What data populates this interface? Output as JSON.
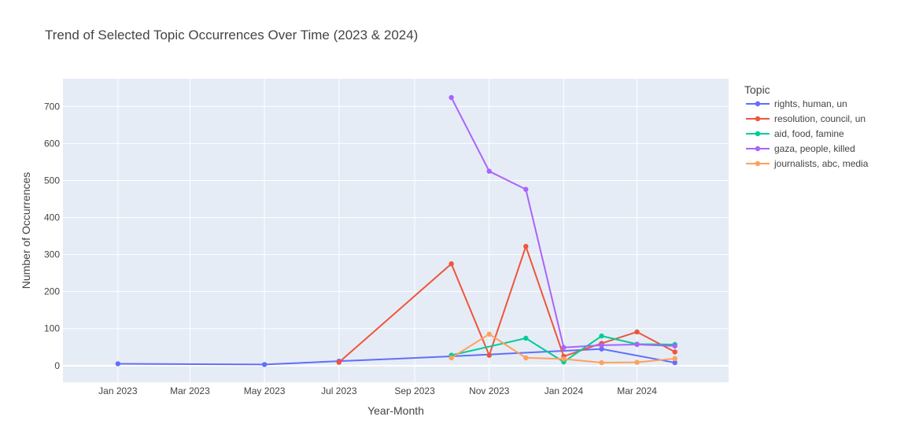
{
  "chart_data": {
    "type": "line",
    "title": "Trend of Selected Topic Occurrences Over Time (2023 & 2024)",
    "xlabel": "Year-Month",
    "ylabel": "Number of Occurrences",
    "xlim": [
      "2022-11-17",
      "2024-05-15"
    ],
    "ylim": [
      -45,
      775
    ],
    "x_ticks": [
      {
        "date": "2023-01-01",
        "label": "Jan 2023"
      },
      {
        "date": "2023-03-01",
        "label": "Mar 2023"
      },
      {
        "date": "2023-05-01",
        "label": "May 2023"
      },
      {
        "date": "2023-07-01",
        "label": "Jul 2023"
      },
      {
        "date": "2023-09-01",
        "label": "Sep 2023"
      },
      {
        "date": "2023-11-01",
        "label": "Nov 2023"
      },
      {
        "date": "2024-01-01",
        "label": "Jan 2024"
      },
      {
        "date": "2024-03-01",
        "label": "Mar 2024"
      }
    ],
    "y_ticks": [
      0,
      100,
      200,
      300,
      400,
      500,
      600,
      700
    ],
    "grid": true,
    "legend_title": "Topic",
    "legend_position": "right",
    "series": [
      {
        "name": "rights, human, un",
        "color": "#636efa",
        "x": [
          "2023-01-01",
          "2023-05-01",
          "2023-07-01",
          "2023-10-01",
          "2024-02-01",
          "2024-04-01"
        ],
        "y": [
          5,
          3,
          12,
          25,
          45,
          8
        ]
      },
      {
        "name": "resolution, council, un",
        "color": "#EF553B",
        "x": [
          "2023-07-01",
          "2023-10-01",
          "2023-11-01",
          "2023-12-01",
          "2024-01-01",
          "2024-02-01",
          "2024-03-01",
          "2024-04-01"
        ],
        "y": [
          9,
          275,
          28,
          322,
          25,
          60,
          91,
          37
        ]
      },
      {
        "name": "aid, food, famine",
        "color": "#00cc96",
        "x": [
          "2023-10-01",
          "2023-12-01",
          "2024-01-01",
          "2024-02-01",
          "2024-03-01",
          "2024-04-01"
        ],
        "y": [
          28,
          74,
          10,
          80,
          58,
          57
        ]
      },
      {
        "name": "gaza, people, killed",
        "color": "#ab63fa",
        "x": [
          "2023-10-01",
          "2023-11-01",
          "2023-12-01",
          "2024-01-01",
          "2024-02-01",
          "2024-03-01",
          "2024-04-01"
        ],
        "y": [
          724,
          525,
          476,
          49,
          55,
          57,
          53
        ]
      },
      {
        "name": "journalists, abc, media",
        "color": "#FFA15A",
        "x": [
          "2023-10-01",
          "2023-11-01",
          "2023-12-01",
          "2024-01-01",
          "2024-02-01",
          "2024-03-01",
          "2024-04-01"
        ],
        "y": [
          21,
          85,
          21,
          18,
          8,
          9,
          19
        ]
      }
    ]
  }
}
